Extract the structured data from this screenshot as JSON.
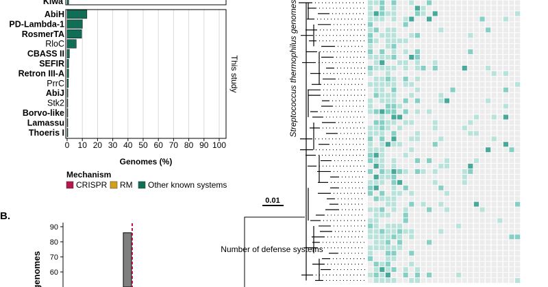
{
  "chart_data": [
    {
      "type": "bar",
      "orientation": "horizontal",
      "panel_label": "",
      "facet_top_label": "Kiwa",
      "facet_label": "This study",
      "categories": [
        "AbiH",
        "PD-Lambda-1",
        "RosmerTA",
        "RloC",
        "CBASS II",
        "SEFIR",
        "Retron III-A",
        "PrrC",
        "AbiJ",
        "Stk2",
        "Borvo-like",
        "Lamassu",
        "Thoeris I"
      ],
      "bold": [
        true,
        true,
        true,
        false,
        true,
        true,
        true,
        false,
        true,
        false,
        true,
        true,
        true
      ],
      "values": [
        13,
        10,
        9.5,
        6,
        1.5,
        1,
        1,
        0.8,
        0.5,
        0.4,
        0.4,
        0.3,
        0.3
      ],
      "top_value": 1,
      "xlabel": "Genomes (%)",
      "xlim": [
        0,
        100
      ],
      "xticks": [
        "0",
        "10",
        "20",
        "30",
        "40",
        "50",
        "60",
        "70",
        "80",
        "90",
        "100"
      ],
      "grid": true
    },
    {
      "type": "bar",
      "panel_label": "B.",
      "ylabel": "genomes",
      "yticks": [
        "90",
        "80",
        "70",
        "60"
      ],
      "ylim": [
        55,
        93
      ],
      "values": [
        86
      ],
      "reference_line": "dashed-red"
    }
  ],
  "legend": {
    "title": "Mechanism",
    "entries": [
      {
        "label": "CRISPR",
        "color": "#b5174f"
      },
      {
        "label": "RM",
        "color": "#d4a017"
      },
      {
        "label": "Other known systems",
        "color": "#0f6e55"
      }
    ]
  },
  "tree": {
    "scale_label": "0.01",
    "axis_label": "Streptococcus thermophilus genomes",
    "box_label": "Number of defense systems"
  },
  "colors": {
    "bar": "#0f6e55",
    "grid": "#d9d9d9",
    "heat_empty": "#ececec",
    "heat_1": "#b9e2db",
    "heat_2": "#86cfc4",
    "heat_3": "#48a99a",
    "gray_bar": "#7f7f7f",
    "dash": "#b5174f"
  }
}
